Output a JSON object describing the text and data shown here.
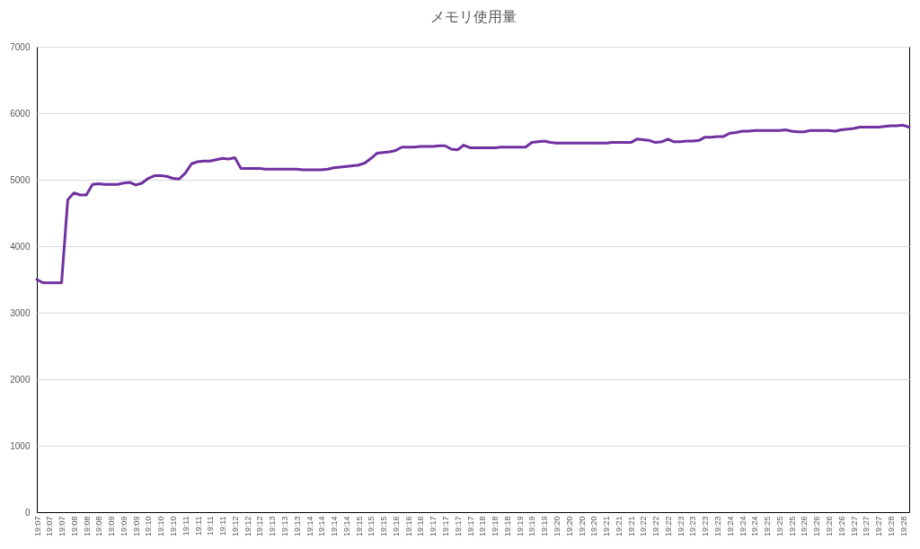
{
  "chart_data": {
    "type": "line",
    "title": "メモリ使用量",
    "categories": [
      "19:07",
      null,
      "19:07",
      null,
      "19:07",
      null,
      "19:08",
      null,
      "19:08",
      null,
      "19:08",
      null,
      "19:09",
      null,
      "19:09",
      null,
      "19:09",
      null,
      "19:10",
      null,
      "19:10",
      null,
      "19:10",
      null,
      "19:11",
      null,
      "19:11",
      null,
      "19:11",
      null,
      "19:11",
      null,
      "19:12",
      null,
      "19:12",
      null,
      "19:12",
      null,
      "19:13",
      null,
      "19:13",
      null,
      "19:13",
      null,
      "19:14",
      null,
      "19:14",
      null,
      "19:14",
      null,
      "19:14",
      null,
      "19:15",
      null,
      "19:15",
      null,
      "19:15",
      null,
      "19:16",
      null,
      "19:16",
      null,
      "19:16",
      null,
      "19:17",
      null,
      "19:17",
      null,
      "19:17",
      null,
      "19:17",
      null,
      "19:18",
      null,
      "19:18",
      null,
      "19:18",
      null,
      "19:19",
      null,
      "19:19",
      null,
      "19:19",
      null,
      "19:20",
      null,
      "19:20",
      null,
      "19:20",
      null,
      "19:20",
      null,
      "19:21",
      null,
      "19:21",
      null,
      "19:21",
      null,
      "19:22",
      null,
      "19:22",
      null,
      "19:22",
      null,
      "19:23",
      null,
      "19:23",
      null,
      "19:23",
      null,
      "19:23",
      null,
      "19:24",
      null,
      "19:24",
      null,
      "19:24",
      null,
      "19:25",
      null,
      "19:25",
      null,
      "19:25",
      null,
      "19:26",
      null,
      "19:26",
      null,
      "19:26",
      null,
      "19:26",
      null,
      "19:27",
      null,
      "19:27",
      null,
      "19:27",
      null,
      "19:28",
      null,
      "19:28",
      null
    ],
    "series": [
      {
        "color": "#7030a0",
        "values": [
          3500,
          3450,
          3450,
          3450,
          3450,
          4700,
          4800,
          4770,
          4770,
          4930,
          4940,
          4930,
          4930,
          4930,
          4950,
          4960,
          4920,
          4950,
          5020,
          5060,
          5060,
          5050,
          5020,
          5010,
          5100,
          5240,
          5270,
          5280,
          5280,
          5300,
          5320,
          5310,
          5330,
          5170,
          5170,
          5170,
          5170,
          5160,
          5160,
          5160,
          5160,
          5160,
          5160,
          5150,
          5150,
          5150,
          5150,
          5160,
          5180,
          5190,
          5200,
          5210,
          5220,
          5250,
          5320,
          5400,
          5410,
          5420,
          5440,
          5490,
          5490,
          5490,
          5500,
          5500,
          5500,
          5510,
          5510,
          5460,
          5450,
          5520,
          5480,
          5480,
          5480,
          5480,
          5480,
          5490,
          5490,
          5490,
          5490,
          5490,
          5560,
          5570,
          5580,
          5560,
          5550,
          5550,
          5550,
          5550,
          5550,
          5550,
          5550,
          5550,
          5550,
          5560,
          5560,
          5560,
          5560,
          5610,
          5600,
          5590,
          5560,
          5570,
          5610,
          5570,
          5570,
          5580,
          5580,
          5590,
          5640,
          5640,
          5650,
          5650,
          5700,
          5710,
          5730,
          5730,
          5740,
          5740,
          5740,
          5740,
          5740,
          5750,
          5730,
          5720,
          5720,
          5740,
          5740,
          5740,
          5740,
          5730,
          5750,
          5760,
          5770,
          5790,
          5790,
          5790,
          5790,
          5800,
          5810,
          5810,
          5820,
          5790
        ]
      }
    ],
    "ylim": [
      0,
      7000
    ],
    "yticks": [
      0,
      1000,
      2000,
      3000,
      4000,
      5000,
      6000,
      7000
    ],
    "grid": "y"
  }
}
